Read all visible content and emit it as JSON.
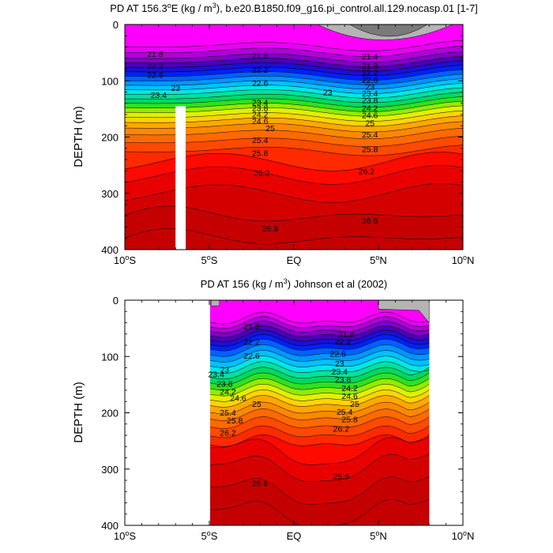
{
  "chart_data": [
    {
      "type": "contour",
      "title": "PD AT 156.3",
      "title_sup": "o",
      "title_rest": "E (kg / m",
      "title_unit_sup": "3",
      "title_tail": "), b.e20.B1850.f09_g16.pi_control.all.129.nocasp.01 [1-7]",
      "ylabel": "DEPTH (m)",
      "xlim": [
        -10,
        10
      ],
      "ylim": [
        400,
        0
      ],
      "x_ticks": [
        {
          "value": -10,
          "num": "10",
          "sup": "o",
          "hemi": "S"
        },
        {
          "value": -5,
          "num": "5",
          "sup": "o",
          "hemi": "S"
        },
        {
          "value": 0,
          "num": "EQ",
          "sup": "",
          "hemi": ""
        },
        {
          "value": 5,
          "num": "5",
          "sup": "o",
          "hemi": "N"
        },
        {
          "value": 10,
          "num": "10",
          "sup": "o",
          "hemi": "N"
        }
      ],
      "y_ticks": [
        "0",
        "100",
        "200",
        "300",
        "400"
      ],
      "y_tick_values": [
        0,
        100,
        200,
        300,
        400
      ],
      "contour_labels": [
        {
          "text": "21.8",
          "x": -8.2,
          "y": 52
        },
        {
          "text": "21.8",
          "x": -2.0,
          "y": 55
        },
        {
          "text": "21.4",
          "x": 4.5,
          "y": 56
        },
        {
          "text": "22.2",
          "x": -8.2,
          "y": 72
        },
        {
          "text": "22.2",
          "x": -2.0,
          "y": 80
        },
        {
          "text": "21.8",
          "x": 4.5,
          "y": 73
        },
        {
          "text": "22.6",
          "x": -8.2,
          "y": 89
        },
        {
          "text": "22.6",
          "x": -2.0,
          "y": 104
        },
        {
          "text": "22.2",
          "x": 4.5,
          "y": 85
        },
        {
          "text": "23",
          "x": -7.0,
          "y": 112
        },
        {
          "text": "23",
          "x": 2.0,
          "y": 120
        },
        {
          "text": "22.6",
          "x": 4.5,
          "y": 98
        },
        {
          "text": "23.4",
          "x": -8.0,
          "y": 125
        },
        {
          "text": "23.4",
          "x": -2.0,
          "y": 138
        },
        {
          "text": "23",
          "x": 4.5,
          "y": 110
        },
        {
          "text": "23.8",
          "x": -2.0,
          "y": 148
        },
        {
          "text": "23.4",
          "x": 4.5,
          "y": 122
        },
        {
          "text": "24.2",
          "x": -2.0,
          "y": 159
        },
        {
          "text": "23.8",
          "x": 4.5,
          "y": 134
        },
        {
          "text": "24.6",
          "x": -2.0,
          "y": 171
        },
        {
          "text": "24.2",
          "x": 4.5,
          "y": 148
        },
        {
          "text": "25",
          "x": -1.4,
          "y": 184
        },
        {
          "text": "24.6",
          "x": 4.5,
          "y": 161
        },
        {
          "text": "25",
          "x": 4.5,
          "y": 175
        },
        {
          "text": "25.4",
          "x": -2.0,
          "y": 205
        },
        {
          "text": "25.4",
          "x": 4.5,
          "y": 195
        },
        {
          "text": "25.8",
          "x": -2.0,
          "y": 228
        },
        {
          "text": "25.8",
          "x": 4.5,
          "y": 221
        },
        {
          "text": "26.2",
          "x": -1.9,
          "y": 263
        },
        {
          "text": "26.2",
          "x": 4.3,
          "y": 260
        },
        {
          "text": "26.6",
          "x": 4.5,
          "y": 348
        },
        {
          "text": "26.6",
          "x": -1.4,
          "y": 362
        }
      ],
      "land_mask": {
        "lon_min": -7.0,
        "lon_max": -6.4,
        "depth_min": 145,
        "depth_max": 400,
        "note": "white vertical gap"
      }
    },
    {
      "type": "contour",
      "title": "PD AT 156 (kg / m",
      "title_unit_sup": "3",
      "title_tail": ") Johnson et al (2002)",
      "ylabel": "DEPTH (m)",
      "xlim": [
        -10,
        10
      ],
      "ylim": [
        400,
        0
      ],
      "data_extent_lon": [
        -5,
        8
      ],
      "x_ticks": [
        {
          "value": -10,
          "num": "10",
          "sup": "o",
          "hemi": "S"
        },
        {
          "value": -5,
          "num": "5",
          "sup": "o",
          "hemi": "S"
        },
        {
          "value": 0,
          "num": "EQ",
          "sup": "",
          "hemi": ""
        },
        {
          "value": 5,
          "num": "5",
          "sup": "o",
          "hemi": "N"
        },
        {
          "value": 10,
          "num": "10",
          "sup": "o",
          "hemi": "N"
        }
      ],
      "y_ticks": [
        "0",
        "100",
        "200",
        "300",
        "400"
      ],
      "y_tick_values": [
        0,
        100,
        200,
        300,
        400
      ],
      "contour_labels": [
        {
          "text": "21.8",
          "x": -2.5,
          "y": 46
        },
        {
          "text": "21.8",
          "x": 3.1,
          "y": 60
        },
        {
          "text": "22.2",
          "x": -2.5,
          "y": 74
        },
        {
          "text": "22.2",
          "x": 2.9,
          "y": 72
        },
        {
          "text": "22.6",
          "x": -2.5,
          "y": 98
        },
        {
          "text": "22.6",
          "x": 2.6,
          "y": 95
        },
        {
          "text": "23",
          "x": -4.1,
          "y": 123
        },
        {
          "text": "23",
          "x": 2.7,
          "y": 112
        },
        {
          "text": "23.4",
          "x": -4.6,
          "y": 131
        },
        {
          "text": "23.4",
          "x": 2.7,
          "y": 126
        },
        {
          "text": "23.8",
          "x": -4.1,
          "y": 148
        },
        {
          "text": "23.8",
          "x": 2.9,
          "y": 140
        },
        {
          "text": "24.2",
          "x": -3.9,
          "y": 162
        },
        {
          "text": "24.2",
          "x": 3.3,
          "y": 156
        },
        {
          "text": "24.6",
          "x": -3.3,
          "y": 173
        },
        {
          "text": "24.6",
          "x": 3.3,
          "y": 170
        },
        {
          "text": "25",
          "x": -2.2,
          "y": 184
        },
        {
          "text": "25",
          "x": 3.6,
          "y": 184
        },
        {
          "text": "25.4",
          "x": -3.9,
          "y": 199
        },
        {
          "text": "25.4",
          "x": 3.0,
          "y": 198
        },
        {
          "text": "25.8",
          "x": -3.5,
          "y": 213
        },
        {
          "text": "25.8",
          "x": 3.3,
          "y": 211
        },
        {
          "text": "26.2",
          "x": -3.9,
          "y": 235
        },
        {
          "text": "26.2",
          "x": 2.8,
          "y": 228
        },
        {
          "text": "25.6",
          "x": 2.8,
          "y": 312
        },
        {
          "text": "26.6",
          "x": -2.0,
          "y": 325
        }
      ]
    }
  ]
}
